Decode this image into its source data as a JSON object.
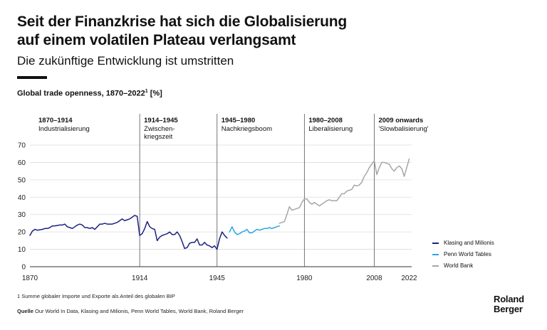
{
  "title_line1": "Seit der Finanzkrise hat sich die Globalisierung",
  "title_line2": "auf einem volatilen Plateau verlangsamt",
  "subtitle": "Die zukünftige Entwicklung ist umstritten",
  "chart_title": "Global trade openness, 1870–2022",
  "chart_title_sup": "1",
  "chart_title_unit": " [%]",
  "footnote": "1 Summe globaler Importe und Exporte als Anteil des globalen BIP",
  "source_label": "Quelle",
  "source_text": " Our World In Data, Klasing and Milionis, Penn World Tables, World Bank, Roland Berger",
  "logo": {
    "line1": "Roland",
    "line2": "Berger"
  },
  "chart_data": {
    "type": "line",
    "title": "Global trade openness, 1870–2022",
    "unit": "%",
    "ylim": [
      0,
      70
    ],
    "y_ticks": [
      0,
      10,
      20,
      30,
      40,
      50,
      60,
      70
    ],
    "x_ticks": [
      1870,
      1914,
      1945,
      1980,
      2008,
      2022
    ],
    "grid": true,
    "legend_position": "right",
    "periods": [
      {
        "years": "1870–1914",
        "name": "Industrialisierung",
        "start": 1870
      },
      {
        "years": "1914–1945",
        "name": "Zwischen-\nkriegszeit",
        "start": 1914
      },
      {
        "years": "1945–1980",
        "name": "Nachkriegsboom",
        "start": 1945
      },
      {
        "years": "1980–2008",
        "name": "Liberalisierung",
        "start": 1980
      },
      {
        "years": "2009 onwards",
        "name": "'Slowbalisierung'",
        "start": 2008
      }
    ],
    "series": [
      {
        "name": "Klasing and Milionis",
        "color": "#1a237e",
        "points": [
          [
            1870,
            18
          ],
          [
            1871,
            20.5
          ],
          [
            1872,
            21.5
          ],
          [
            1873,
            21
          ],
          [
            1875,
            21.5
          ],
          [
            1876,
            22
          ],
          [
            1877,
            22
          ],
          [
            1878,
            22.5
          ],
          [
            1879,
            23.5
          ],
          [
            1880,
            23.5
          ],
          [
            1882,
            24
          ],
          [
            1883,
            24
          ],
          [
            1884,
            24.5
          ],
          [
            1885,
            23
          ],
          [
            1886,
            22.5
          ],
          [
            1887,
            22
          ],
          [
            1888,
            23
          ],
          [
            1889,
            24
          ],
          [
            1890,
            24.5
          ],
          [
            1891,
            24
          ],
          [
            1892,
            22.5
          ],
          [
            1893,
            22.5
          ],
          [
            1894,
            22
          ],
          [
            1895,
            22.5
          ],
          [
            1896,
            21.5
          ],
          [
            1897,
            23
          ],
          [
            1898,
            24.5
          ],
          [
            1899,
            24.5
          ],
          [
            1900,
            25
          ],
          [
            1901,
            24.5
          ],
          [
            1902,
            24.5
          ],
          [
            1903,
            24.5
          ],
          [
            1904,
            25
          ],
          [
            1905,
            25.5
          ],
          [
            1906,
            26.5
          ],
          [
            1907,
            27.5
          ],
          [
            1908,
            26.5
          ],
          [
            1909,
            27
          ],
          [
            1910,
            27.5
          ],
          [
            1911,
            28.5
          ],
          [
            1912,
            29.5
          ],
          [
            1913,
            29
          ],
          [
            1914,
            18
          ],
          [
            1915,
            19
          ],
          [
            1916,
            22
          ],
          [
            1917,
            26
          ],
          [
            1918,
            23
          ],
          [
            1919,
            22
          ],
          [
            1920,
            21.5
          ],
          [
            1921,
            15
          ],
          [
            1922,
            17
          ],
          [
            1923,
            18
          ],
          [
            1924,
            18.5
          ],
          [
            1925,
            19
          ],
          [
            1926,
            20
          ],
          [
            1927,
            18.5
          ],
          [
            1928,
            18.5
          ],
          [
            1929,
            20
          ],
          [
            1930,
            18
          ],
          [
            1931,
            14.5
          ],
          [
            1932,
            10.5
          ],
          [
            1933,
            11
          ],
          [
            1934,
            13.5
          ],
          [
            1935,
            14
          ],
          [
            1936,
            14
          ],
          [
            1937,
            16
          ],
          [
            1938,
            12.5
          ],
          [
            1939,
            12.5
          ],
          [
            1940,
            14
          ],
          [
            1941,
            12.5
          ],
          [
            1942,
            12
          ],
          [
            1943,
            11
          ],
          [
            1944,
            12
          ],
          [
            1945,
            10
          ],
          [
            1946,
            16
          ],
          [
            1947,
            20
          ],
          [
            1948,
            18
          ],
          [
            1949,
            16.5
          ]
        ]
      },
      {
        "name": "Penn World Tables",
        "color": "#29a8e0",
        "points": [
          [
            1950,
            20
          ],
          [
            1951,
            23
          ],
          [
            1952,
            20
          ],
          [
            1953,
            18.5
          ],
          [
            1954,
            19
          ],
          [
            1955,
            20
          ],
          [
            1956,
            20.5
          ],
          [
            1957,
            21.5
          ],
          [
            1958,
            19.5
          ],
          [
            1959,
            19.5
          ],
          [
            1960,
            20.5
          ],
          [
            1961,
            21.5
          ],
          [
            1962,
            21
          ],
          [
            1963,
            21.5
          ],
          [
            1964,
            22
          ],
          [
            1965,
            22
          ],
          [
            1966,
            22.5
          ],
          [
            1967,
            22
          ],
          [
            1968,
            22.5
          ],
          [
            1969,
            23
          ],
          [
            1970,
            23.5
          ]
        ]
      },
      {
        "name": "World Bank",
        "color": "#a6a6a6",
        "points": [
          [
            1970,
            25
          ],
          [
            1971,
            25.5
          ],
          [
            1972,
            26
          ],
          [
            1973,
            30
          ],
          [
            1974,
            34.5
          ],
          [
            1975,
            32.5
          ],
          [
            1976,
            33
          ],
          [
            1977,
            33.5
          ],
          [
            1978,
            34
          ],
          [
            1979,
            37
          ],
          [
            1980,
            39
          ],
          [
            1981,
            39
          ],
          [
            1982,
            37
          ],
          [
            1983,
            36
          ],
          [
            1984,
            37
          ],
          [
            1985,
            36
          ],
          [
            1986,
            35
          ],
          [
            1987,
            36
          ],
          [
            1988,
            37
          ],
          [
            1989,
            38
          ],
          [
            1990,
            38.5
          ],
          [
            1991,
            38
          ],
          [
            1992,
            38
          ],
          [
            1993,
            38
          ],
          [
            1994,
            40
          ],
          [
            1995,
            42
          ],
          [
            1996,
            42
          ],
          [
            1997,
            43.5
          ],
          [
            1998,
            44
          ],
          [
            1999,
            44.5
          ],
          [
            2000,
            47
          ],
          [
            2001,
            46.5
          ],
          [
            2002,
            47
          ],
          [
            2003,
            48.5
          ],
          [
            2004,
            52
          ],
          [
            2005,
            54
          ],
          [
            2006,
            57
          ],
          [
            2007,
            59
          ],
          [
            2008,
            61
          ],
          [
            2009,
            53
          ],
          [
            2010,
            57
          ],
          [
            2011,
            60
          ],
          [
            2012,
            60
          ],
          [
            2013,
            59.5
          ],
          [
            2014,
            59
          ],
          [
            2015,
            56.5
          ],
          [
            2016,
            55
          ],
          [
            2017,
            57
          ],
          [
            2018,
            58
          ],
          [
            2019,
            56.5
          ],
          [
            2020,
            52
          ],
          [
            2021,
            57
          ],
          [
            2022,
            62
          ]
        ]
      }
    ]
  }
}
